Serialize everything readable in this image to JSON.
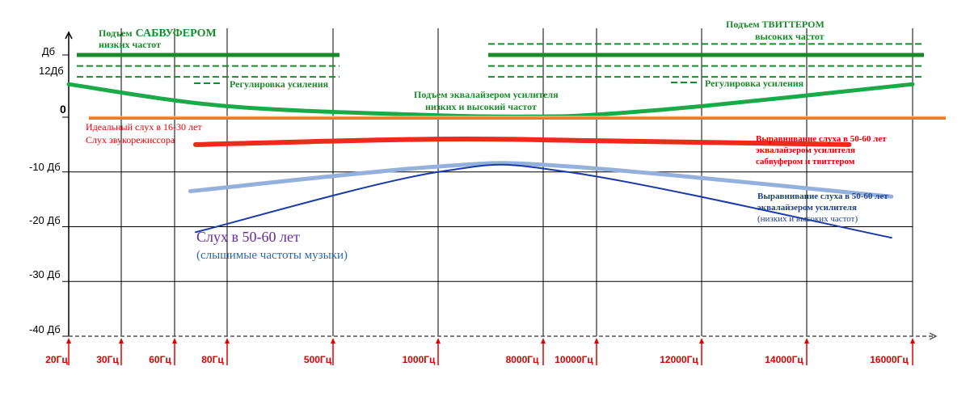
{
  "chart_data": {
    "type": "line",
    "title": "",
    "xlabel": "",
    "ylabel": "",
    "x_ticks": [
      "20Гц",
      "30Гц",
      "60Гц",
      "80Гц",
      "500Гц",
      "1000Гц",
      "8000Гц",
      "10000Гц",
      "12000Гц",
      "14000Гц",
      "16000Гц"
    ],
    "y_ticks": [
      "Дб",
      "12Дб",
      "0",
      "-10 Дб",
      "-20 Дб",
      "-30 Дб",
      "-40 Дб"
    ],
    "grid": true,
    "series": [
      {
        "name": "Подъем эквалайзером усилителя низких и высокий частот",
        "color": "#1aaa48",
        "x_index": [
          0,
          3,
          5,
          6,
          7,
          8,
          10
        ],
        "y": [
          9,
          3,
          0.5,
          0.2,
          0.7,
          3,
          9
        ]
      },
      {
        "name": "Идеальный слух в 16-30 лет",
        "color": "#f07a20",
        "x_index": [
          0,
          10.3
        ],
        "y": [
          0,
          0
        ]
      },
      {
        "name": "Выравнивание слуха в 50-60 лет эквалайзером усилителя сабвуфером и твиттером",
        "color": "#ee2a1a",
        "x_index": [
          2.4,
          5,
          7,
          9.4
        ],
        "y": [
          -5,
          -4,
          -4.3,
          -5
        ]
      },
      {
        "name": "Выравнивание слуха в 50-60 лет эквалайзером усилителя (низких и высоких частот)",
        "color": "#94b0dc",
        "x_index": [
          2.3,
          5,
          6.5,
          9.8
        ],
        "y": [
          -13.5,
          -9,
          -9,
          -14.5
        ]
      },
      {
        "name": "Слух в 50-60 лет (слышимые частоты музыки)",
        "color": "#1a3aa8",
        "x_index": [
          2.4,
          5,
          6.6,
          9.8
        ],
        "y": [
          -21,
          -10,
          -10.2,
          -22
        ]
      }
    ],
    "boost_levels": {
      "subwoofer": {
        "x_index": [
          0,
          4
        ],
        "solid": 17,
        "dashed": [
          14,
          11
        ]
      },
      "tweeter": {
        "x_index": [
          6,
          10
        ],
        "solid": 17,
        "dashed": [
          20,
          14,
          11
        ]
      }
    }
  },
  "labels": {
    "sub_title_small": "Подъем",
    "sub_title_big": "САБВУФЕРОМ",
    "sub_line2": "низких частот",
    "sub_gain": "Регулировка усиления",
    "tw_title": "Подъем ТВИТТЕРОМ",
    "tw_line2": "высоких частот",
    "tw_gain": "Регулировка усиления",
    "eq_line1": "Подъем эквалайзером усилителя",
    "eq_line2": "низких и высокий частот",
    "ideal_line1": "Идеальный слух в 16-30 лет",
    "ideal_line2": "Слух звукорежиссора",
    "red_line1": "Выравнивание слуха в 50-60 лет",
    "red_line2": "эквалайзером усилителя",
    "red_line3": "сабвуфером и твиттером",
    "blue_line1": "Выравнивание слуха в 50-60 лет",
    "blue_line2": "эквалайзером усилителя",
    "blue_line3": "(низких и высоких частот)",
    "hear_line1": "Слух в 50-60 лет",
    "hear_line2": "(слышимые частоты музыки)"
  },
  "colors": {
    "axis": "#000000",
    "tick_red": "#e00000",
    "boost_green": "#1a8a2a"
  }
}
